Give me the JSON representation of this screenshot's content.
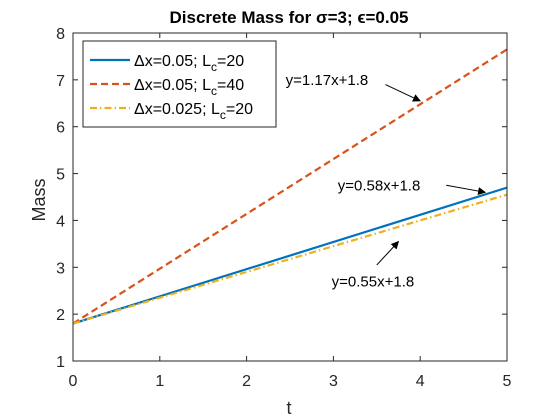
{
  "chart_data": {
    "type": "line",
    "title": "Discrete Mass for σ=3; ϵ=0.05",
    "xlabel": "t",
    "ylabel": "Mass",
    "xlim": [
      0,
      5
    ],
    "ylim": [
      1,
      8
    ],
    "xticks": [
      "0",
      "1",
      "2",
      "3",
      "4",
      "5"
    ],
    "yticks": [
      "1",
      "2",
      "3",
      "4",
      "5",
      "6",
      "7",
      "8"
    ],
    "grid": false,
    "legend_position": "top-left",
    "series": [
      {
        "name": "Δx=0.05; L_c=20",
        "legend": {
          "pre": "Δx=0.05; L",
          "sub": "c",
          "post": "=20"
        },
        "color": "#0072BD",
        "style": "solid",
        "x": [
          0,
          5
        ],
        "y": [
          1.8,
          4.7
        ]
      },
      {
        "name": "Δx=0.05; L_c=40",
        "legend": {
          "pre": "Δx=0.05; L",
          "sub": "c",
          "post": "=40"
        },
        "color": "#D95319",
        "style": "dashed",
        "x": [
          0,
          5
        ],
        "y": [
          1.8,
          7.65
        ]
      },
      {
        "name": "Δx=0.025; L_c=20",
        "legend": {
          "pre": "Δx=0.025; L",
          "sub": "c",
          "post": "=20"
        },
        "color": "#EDB120",
        "style": "dashdot",
        "x": [
          0,
          5
        ],
        "y": [
          1.8,
          4.55
        ]
      }
    ],
    "annotations": [
      {
        "text": "y=1.17x+1.8",
        "text_at": [
          2.45,
          7.0
        ],
        "arrow_from": [
          3.6,
          6.9
        ],
        "arrow_to": [
          4.0,
          6.55
        ]
      },
      {
        "text": "y=0.58x+1.8",
        "text_at": [
          3.05,
          4.75
        ],
        "arrow_from": [
          4.3,
          4.75
        ],
        "arrow_to": [
          4.75,
          4.6
        ]
      },
      {
        "text": "y=0.55x+1.8",
        "text_at": [
          2.98,
          2.7
        ],
        "arrow_from": [
          3.5,
          3.05
        ],
        "arrow_to": [
          3.75,
          3.55
        ]
      }
    ]
  }
}
